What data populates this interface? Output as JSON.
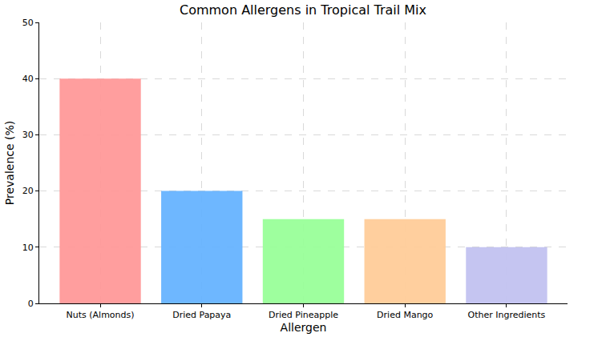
{
  "chart_data": {
    "type": "bar",
    "title": "Common Allergens in Tropical Trail Mix",
    "x_label": "Allergen",
    "y_label": "Prevalence (%)",
    "categories": [
      "Nuts (Almonds)",
      "Dried Papaya",
      "Dried Pineapple",
      "Dried Mango",
      "Other Ingredients"
    ],
    "values": [
      40,
      20,
      15,
      15,
      10
    ],
    "colors": [
      "#ff9999",
      "#66b3ff",
      "#99ff99",
      "#ffcc99",
      "#c2c2f0"
    ],
    "ylim": [
      0,
      50
    ],
    "yticks": [
      0,
      10,
      20,
      30,
      40,
      50
    ],
    "grid": true
  }
}
